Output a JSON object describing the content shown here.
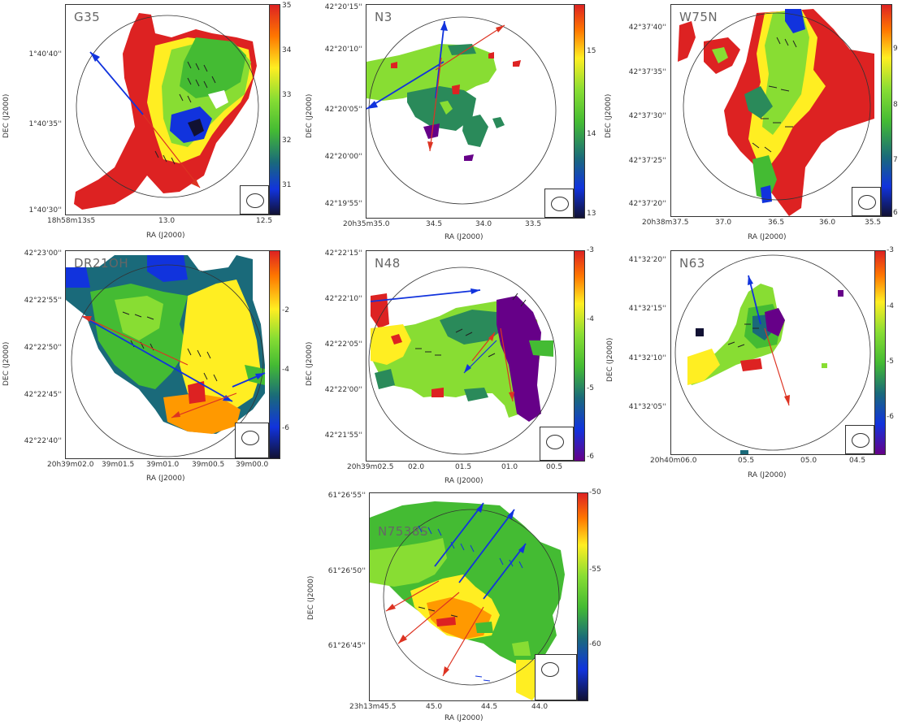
{
  "figure": {
    "panels": [
      {
        "name": "G35",
        "yticks": [
          "1°40'40''",
          "1°40'35''",
          "1°40'30''"
        ],
        "xticks": [
          "18h58m13s5",
          "13.0",
          "12.5"
        ],
        "xlabel": "RA (J2000)",
        "ylabel": "DEC (J2000)",
        "cbar_ticks": [
          "35",
          "34",
          "33",
          "32",
          "31"
        ],
        "cbar_range": [
          30.4,
          35
        ]
      },
      {
        "name": "N3",
        "yticks": [
          "42°20'15''",
          "42°20'10''",
          "42°20'05''",
          "42°20'00''",
          "42°19'55''"
        ],
        "xticks": [
          "20h35m35.0",
          "34.5",
          "34.0",
          "33.5"
        ],
        "xlabel": "RA (J2000)",
        "ylabel": "DEC (J2000)",
        "cbar_ticks": [
          "15",
          "14",
          "13"
        ],
        "cbar_range": [
          13,
          15.6
        ]
      },
      {
        "name": "W75N",
        "yticks": [
          "42°37'40''",
          "42°37'35''",
          "42°37'30''",
          "42°37'25''",
          "42°37'20''"
        ],
        "xticks": [
          "20h38m37.5",
          "37.0",
          "36.5",
          "36.0",
          "35.5"
        ],
        "xlabel": "RA (J2000)",
        "ylabel": "DEC (J2000)",
        "cbar_ticks": [
          "9",
          "8",
          "7",
          "6"
        ],
        "cbar_range": [
          6,
          9.8
        ]
      },
      {
        "name": "DR21OH",
        "yticks": [
          "42°23'00''",
          "42°22'55''",
          "42°22'50''",
          "42°22'45''",
          "42°22'40''"
        ],
        "xticks": [
          "20h39m02.0",
          "39m01.5",
          "39m01.0",
          "39m00.5",
          "39m00.0"
        ],
        "xlabel": "RA (J2000)",
        "ylabel": "DEC (J2000)",
        "cbar_ticks": [
          "-2",
          "-4",
          "-6"
        ],
        "cbar_range": [
          -7,
          0
        ]
      },
      {
        "name": "N48",
        "yticks": [
          "42°22'15''",
          "42°22'10''",
          "42°22'05''",
          "42°22'00''",
          "42°21'55''"
        ],
        "xticks": [
          "20h39m02.5",
          "02.0",
          "01.5",
          "01.0",
          "00.5"
        ],
        "xlabel": "RA (J2000)",
        "ylabel": "DEC (J2000)",
        "cbar_ticks": [
          "-3",
          "-4",
          "-5",
          "-6"
        ],
        "cbar_range": [
          -6,
          -3
        ]
      },
      {
        "name": "N63",
        "yticks": [
          "41°32'20''",
          "41°32'15''",
          "41°32'10''",
          "41°32'05''"
        ],
        "xticks": [
          "20h40m06.0",
          "05.5",
          "05.0",
          "04.5"
        ],
        "xlabel": "RA (J2000)",
        "ylabel": "DEC (J2000)",
        "cbar_ticks": [
          "-3",
          "-4",
          "-5",
          "-6"
        ],
        "cbar_range": [
          -6.7,
          -3
        ]
      },
      {
        "name": "N7538S",
        "yticks": [
          "61°26'55''",
          "61°26'50''",
          "61°26'45''"
        ],
        "xticks": [
          "23h13m45.5",
          "45.0",
          "44.5",
          "44.0"
        ],
        "xlabel": "RA (J2000)",
        "ylabel": "DEC (J2000)",
        "cbar_ticks": [
          "-50",
          "-55",
          "-60"
        ],
        "cbar_range": [
          -63,
          -49.5
        ]
      }
    ],
    "colors": {
      "red": "#dd2222",
      "orange": "#ff9900",
      "yellow": "#ffee22",
      "lightgreen": "#88dd33",
      "green": "#44bb33",
      "darkgreen": "#2a8a5a",
      "teal": "#1a6a7a",
      "blue": "#1133dd",
      "purple": "#660088",
      "blue_arrow": "#1133dd",
      "red_arrow": "#dd3322"
    }
  }
}
